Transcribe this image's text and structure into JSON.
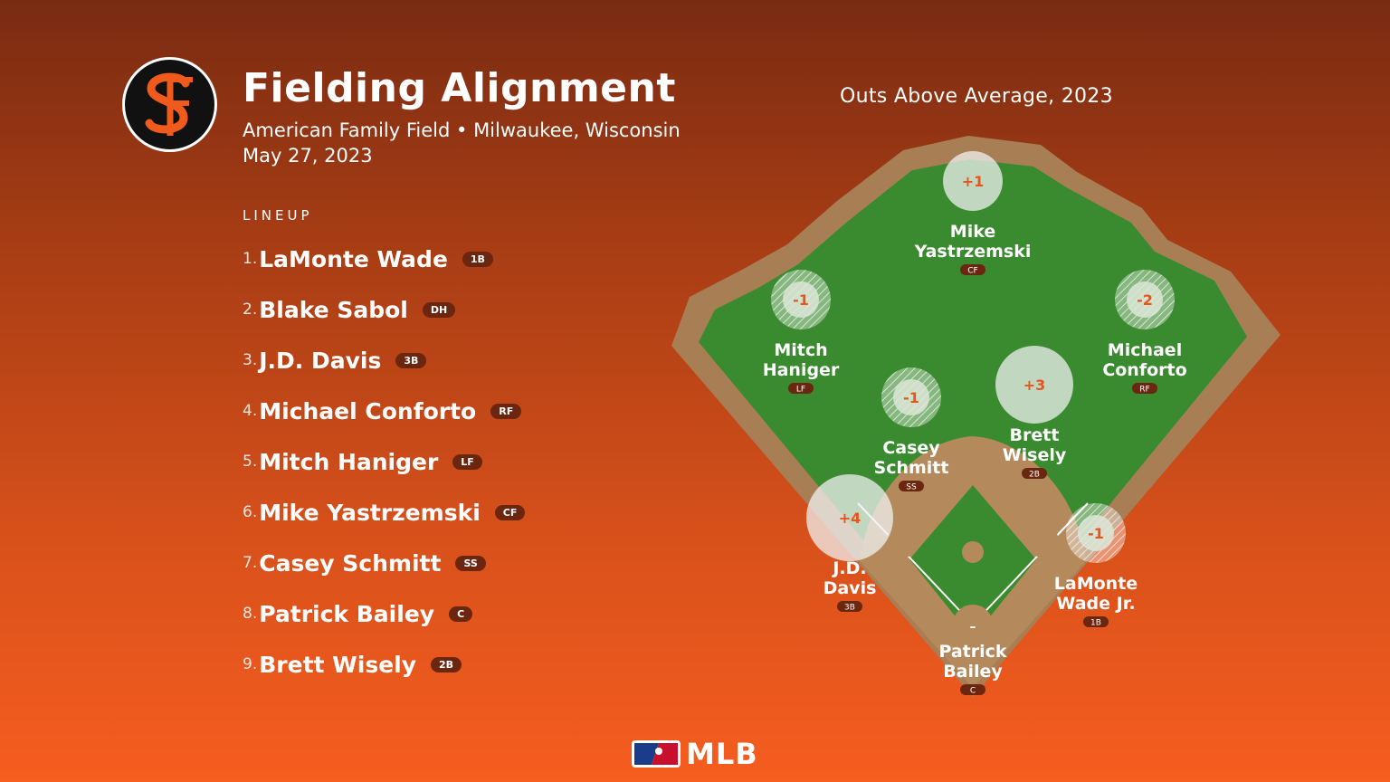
{
  "header": {
    "title": "Fielding Alignment",
    "venue": "American Family Field • Milwaukee, Wisconsin",
    "date": "May 27, 2023",
    "team_logo": "SF",
    "oaa_heading": "Outs Above Average, 2023"
  },
  "lineup": {
    "label": "LINEUP",
    "players": [
      {
        "num": "1.",
        "name": "LaMonte Wade",
        "pos": "1B"
      },
      {
        "num": "2.",
        "name": "Blake Sabol",
        "pos": "DH"
      },
      {
        "num": "3.",
        "name": "J.D. Davis",
        "pos": "3B"
      },
      {
        "num": "4.",
        "name": "Michael Conforto",
        "pos": "RF"
      },
      {
        "num": "5.",
        "name": "Mitch Haniger",
        "pos": "LF"
      },
      {
        "num": "6.",
        "name": "Mike Yastrzemski",
        "pos": "CF"
      },
      {
        "num": "7.",
        "name": "Casey Schmitt",
        "pos": "SS"
      },
      {
        "num": "8.",
        "name": "Patrick Bailey",
        "pos": "C"
      },
      {
        "num": "9.",
        "name": "Brett Wisely",
        "pos": "2B"
      }
    ]
  },
  "field": {
    "fielders": [
      {
        "id": "cf",
        "line1": "Mike",
        "line2": "Yastrzemski",
        "pos": "CF",
        "oaa": "+1",
        "oaa_value": 1
      },
      {
        "id": "lf",
        "line1": "Mitch",
        "line2": "Haniger",
        "pos": "LF",
        "oaa": "-1",
        "oaa_value": -1
      },
      {
        "id": "rf",
        "line1": "Michael",
        "line2": "Conforto",
        "pos": "RF",
        "oaa": "-2",
        "oaa_value": -2
      },
      {
        "id": "ss",
        "line1": "Casey",
        "line2": "Schmitt",
        "pos": "SS",
        "oaa": "-1",
        "oaa_value": -1
      },
      {
        "id": "2b",
        "line1": "Brett",
        "line2": "Wisely",
        "pos": "2B",
        "oaa": "+3",
        "oaa_value": 3
      },
      {
        "id": "3b",
        "line1": "J.D.",
        "line2": "Davis",
        "pos": "3B",
        "oaa": "+4",
        "oaa_value": 4
      },
      {
        "id": "1b",
        "line1": "LaMonte",
        "line2": "Wade Jr.",
        "pos": "1B",
        "oaa": "-1",
        "oaa_value": -1
      },
      {
        "id": "c",
        "line1": "Patrick",
        "line2": "Bailey",
        "pos": "C",
        "oaa": "–",
        "oaa_value": null
      }
    ]
  },
  "footer": {
    "brand": "MLB"
  },
  "colors": {
    "grass": "#3a8a2f",
    "dirt": "#b48a5c",
    "warning_track": "#a87f55",
    "oaa_text": "#e8541c",
    "badge": "#6b2610"
  }
}
